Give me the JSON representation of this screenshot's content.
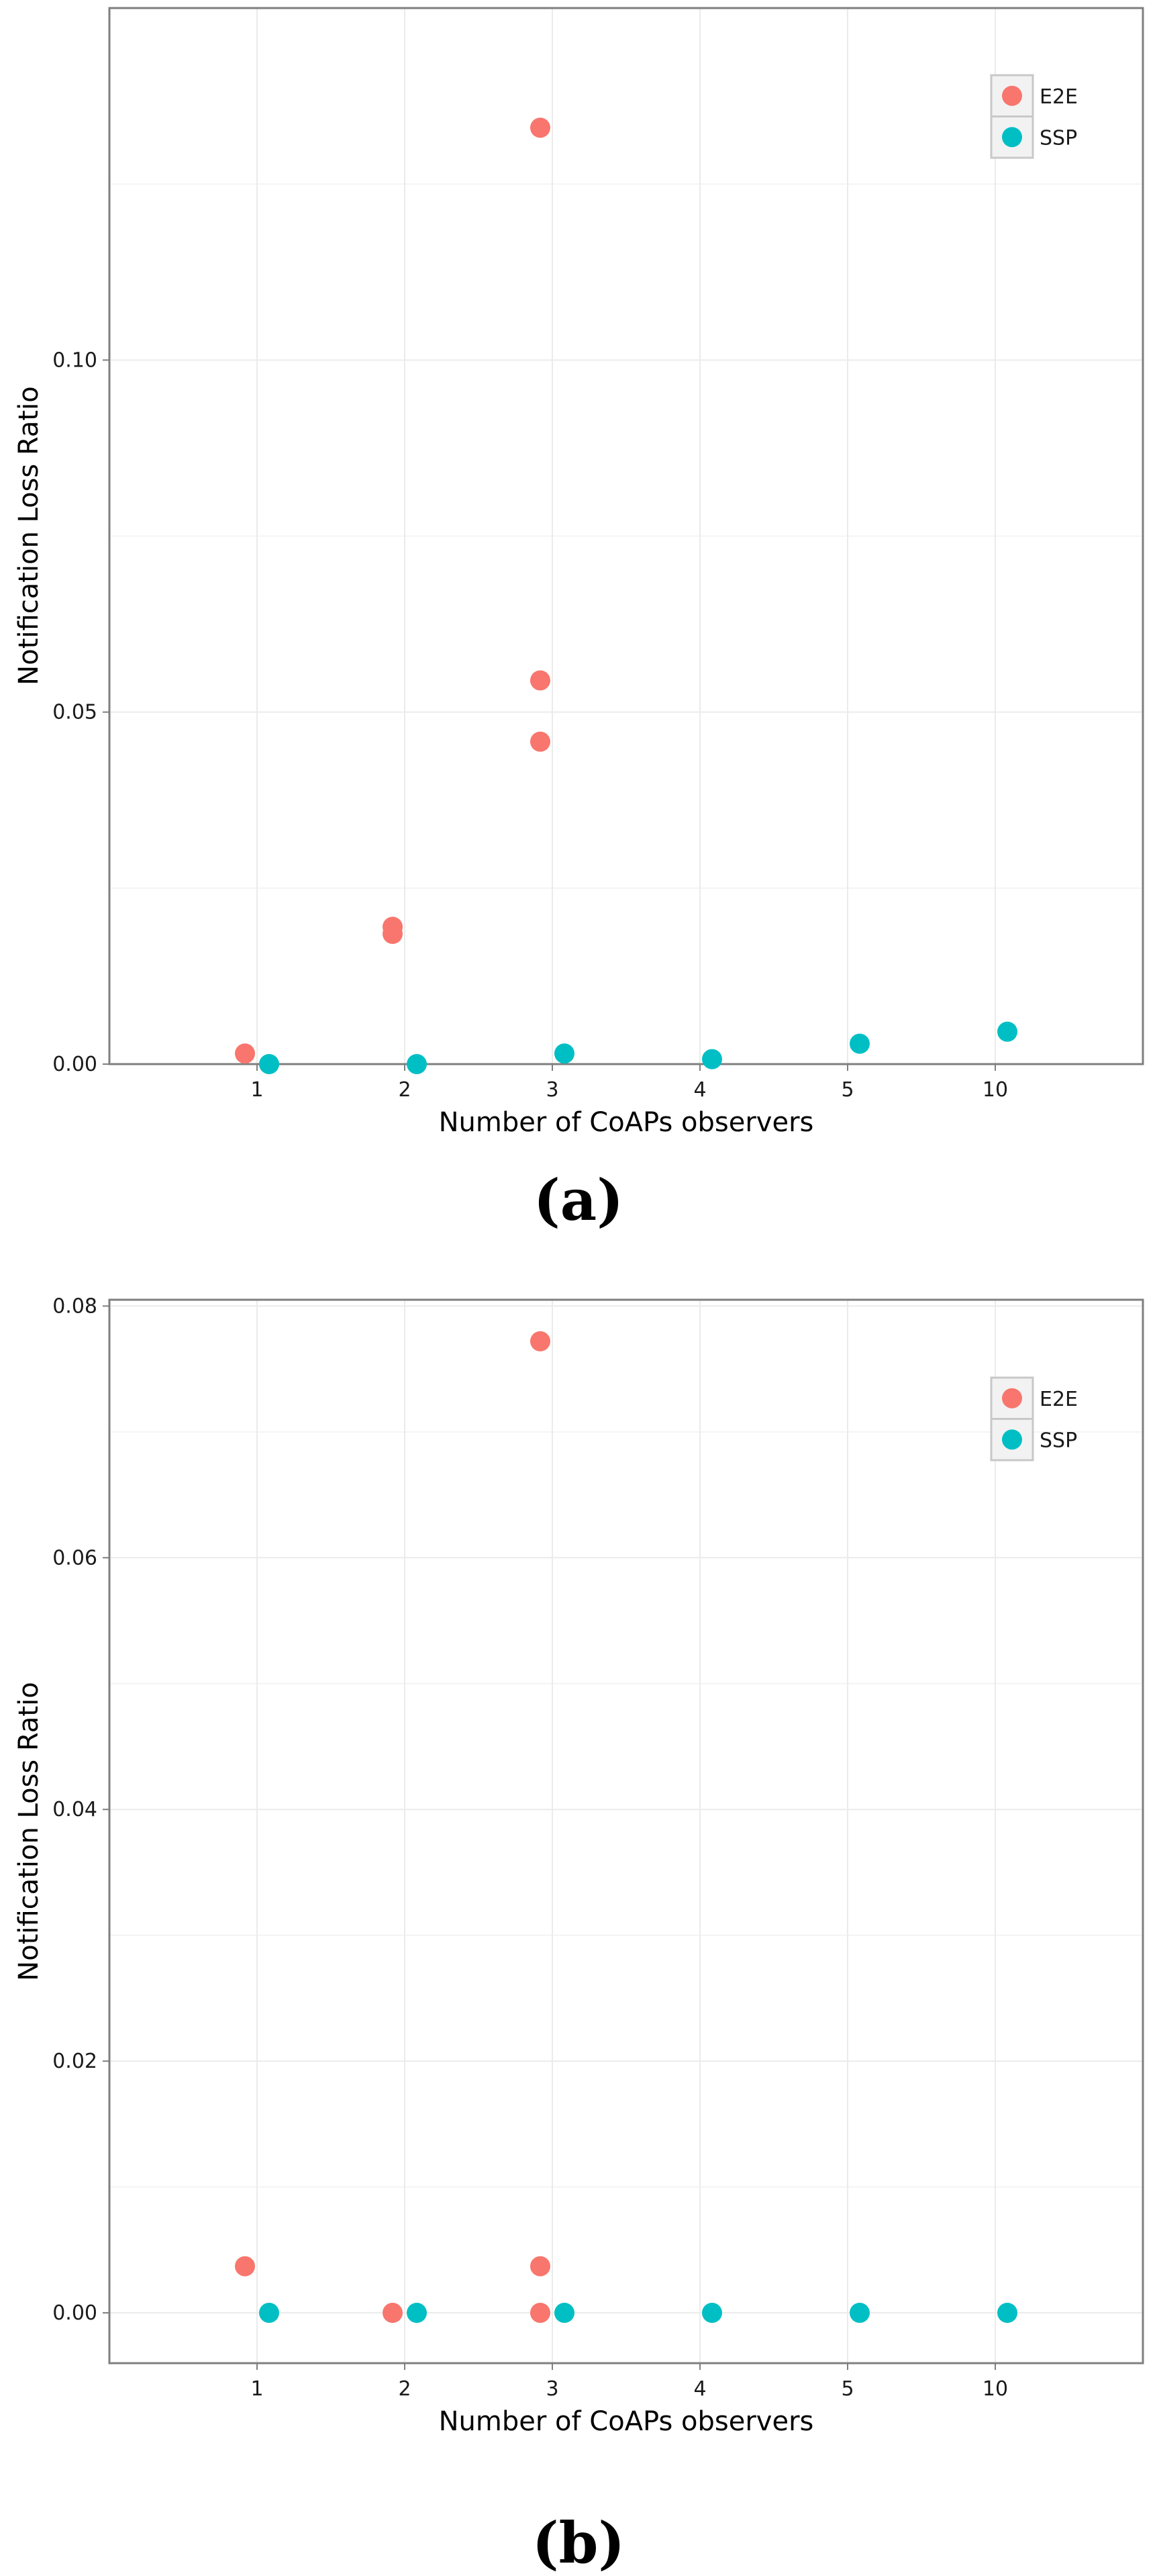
{
  "chart_data": [
    {
      "type": "scatter",
      "title": "",
      "xlabel": "Number of CoAPs observers",
      "ylabel": "Notification Loss Ratio",
      "categories": [
        "1",
        "2",
        "3",
        "4",
        "5",
        "10"
      ],
      "ylim": [
        0,
        0.15
      ],
      "yticks": [
        0.0,
        0.05,
        0.1
      ],
      "ytick_labels": [
        "0.00",
        "0.05",
        "0.10"
      ],
      "grid": true,
      "legend_position": "top-right",
      "series": [
        {
          "name": "E2E",
          "color": "#F8766D",
          "points": [
            {
              "category": "1",
              "value": 0.0015
            },
            {
              "category": "2",
              "value": 0.0195
            },
            {
              "category": "2",
              "value": 0.0185
            },
            {
              "category": "3",
              "value": 0.133
            },
            {
              "category": "3",
              "value": 0.0545
            },
            {
              "category": "3",
              "value": 0.0458
            }
          ]
        },
        {
          "name": "SSP",
          "color": "#00BFC4",
          "points": [
            {
              "category": "1",
              "value": 0.0
            },
            {
              "category": "2",
              "value": 0.0
            },
            {
              "category": "3",
              "value": 0.0015
            },
            {
              "category": "4",
              "value": 0.0007
            },
            {
              "category": "5",
              "value": 0.0029
            },
            {
              "category": "10",
              "value": 0.0046
            }
          ]
        }
      ]
    },
    {
      "type": "scatter",
      "title": "",
      "xlabel": "Number of CoAPs observers",
      "ylabel": "Notification Loss Ratio",
      "categories": [
        "1",
        "2",
        "3",
        "4",
        "5",
        "10"
      ],
      "ylim": [
        -0.004,
        0.0805
      ],
      "yticks": [
        0.0,
        0.02,
        0.04,
        0.06,
        0.08
      ],
      "ytick_labels": [
        "0.00",
        "0.02",
        "0.04",
        "0.06",
        "0.08"
      ],
      "grid": true,
      "legend_position": "top-right",
      "series": [
        {
          "name": "E2E",
          "color": "#F8766D",
          "points": [
            {
              "category": "1",
              "value": 0.0037
            },
            {
              "category": "2",
              "value": 0.0
            },
            {
              "category": "3",
              "value": 0.0772
            },
            {
              "category": "3",
              "value": 0.0037
            },
            {
              "category": "3",
              "value": 0.0
            }
          ]
        },
        {
          "name": "SSP",
          "color": "#00BFC4",
          "points": [
            {
              "category": "1",
              "value": 0.0
            },
            {
              "category": "2",
              "value": 0.0
            },
            {
              "category": "3",
              "value": 0.0
            },
            {
              "category": "4",
              "value": 0.0
            },
            {
              "category": "5",
              "value": 0.0
            },
            {
              "category": "10",
              "value": 0.0
            }
          ]
        }
      ]
    }
  ],
  "captions": [
    "(a)",
    "(b)"
  ]
}
